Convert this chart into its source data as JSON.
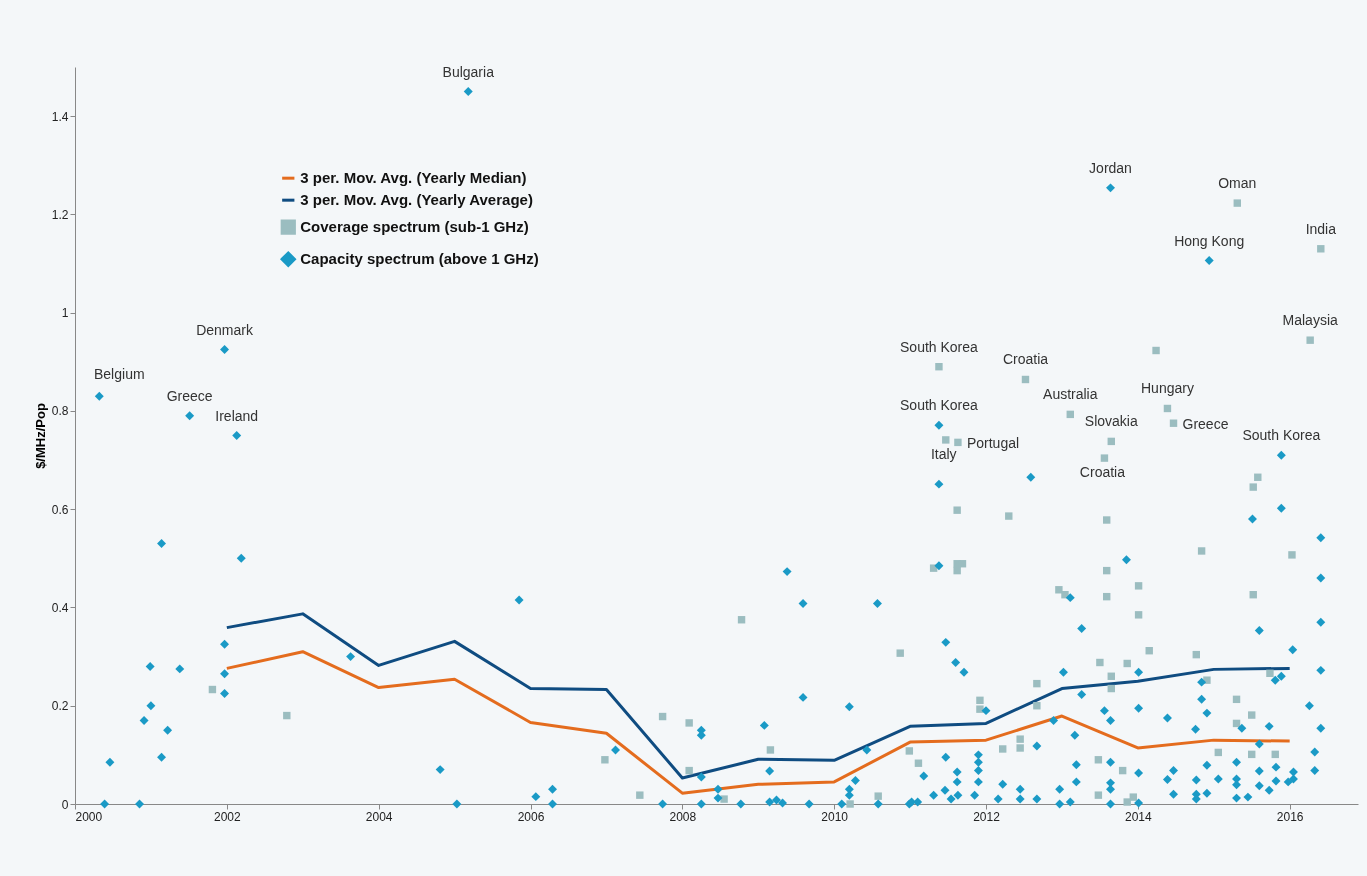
{
  "chart_data": {
    "type": "scatter",
    "ylabel": "$/MHz/Pop",
    "xlim": [
      2000,
      2016.9
    ],
    "xticks": [
      2000,
      2002,
      2004,
      2006,
      2008,
      2010,
      2012,
      2014,
      2016
    ],
    "ylim": [
      0,
      1.5
    ],
    "yticks": [
      0,
      0.2,
      0.4,
      0.6,
      0.8,
      1,
      1.2,
      1.4
    ],
    "grid": false,
    "legend": "top left",
    "series": [
      {
        "name": "3 per. Mov. Avg. (Yearly Median)",
        "type": "line",
        "color": "#e46c1e",
        "x": [
          2002,
          2003,
          2004,
          2005,
          2006,
          2007,
          2008,
          2009,
          2010,
          2011,
          2012,
          2013,
          2014,
          2015,
          2016
        ],
        "values": [
          0.276,
          0.31,
          0.237,
          0.254,
          0.166,
          0.144,
          0.022,
          0.04,
          0.045,
          0.126,
          0.13,
          0.179,
          0.114,
          0.13,
          0.128
        ]
      },
      {
        "name": "3 per. Mov. Avg. (Yearly Average)",
        "type": "line",
        "color": "#0f4c81",
        "x": [
          2002,
          2003,
          2004,
          2005,
          2006,
          2007,
          2008,
          2009,
          2010,
          2011,
          2012,
          2013,
          2014,
          2015,
          2016
        ],
        "values": [
          0.359,
          0.387,
          0.282,
          0.331,
          0.235,
          0.233,
          0.053,
          0.091,
          0.089,
          0.158,
          0.164,
          0.235,
          0.25,
          0.274,
          0.276
        ]
      },
      {
        "name": "Coverage spectrum (sub-1 GHz)",
        "marker": "square",
        "color": "#9bbdc0",
        "x": [
          2001.81,
          2002.79,
          2006.98,
          2007.44,
          2007.74,
          2008.09,
          2008.09,
          2008.55,
          2008.78,
          2009.16,
          2010.21,
          2010.58,
          2010.87,
          2010.99,
          2011.11,
          2011.31,
          2011.38,
          2011.47,
          2011.62,
          2011.62,
          2011.62,
          2011.63,
          2011.69,
          2011.92,
          2011.92,
          2012.22,
          2012.3,
          2012.45,
          2012.45,
          2012.52,
          2012.67,
          2012.67,
          2012.96,
          2013.04,
          2013.11,
          2013.48,
          2013.48,
          2013.5,
          2013.56,
          2013.59,
          2013.59,
          2013.59,
          2013.65,
          2013.65,
          2013.65,
          2013.8,
          2013.86,
          2013.86,
          2013.94,
          2014.01,
          2014.01,
          2014.15,
          2014.24,
          2014.39,
          2014.47,
          2014.77,
          2014.84,
          2014.91,
          2015.06,
          2015.3,
          2015.3,
          2015.31,
          2015.5,
          2015.5,
          2015.52,
          2015.52,
          2015.58,
          2015.74,
          2015.81,
          2016.03,
          2016.27,
          2016.41
        ],
        "values": [
          0.233,
          0.18,
          0.09,
          0.018,
          0.178,
          0.165,
          0.068,
          0.01,
          0.375,
          0.11,
          0,
          0.016,
          0.307,
          0.108,
          0.083,
          0.48,
          0.89,
          0.741,
          0.598,
          0.489,
          0.475,
          0.736,
          0.489,
          0.211,
          0.193,
          0.112,
          0.586,
          0.132,
          0.114,
          0.864,
          0.245,
          0.2,
          0.436,
          0.426,
          0.793,
          0.09,
          0.018,
          0.288,
          0.704,
          0.578,
          0.475,
          0.422,
          0.738,
          0.26,
          0.235,
          0.068,
          0.286,
          0.004,
          0.014,
          0.444,
          0.385,
          0.312,
          0.923,
          0.805,
          0.775,
          0.304,
          0.515,
          0.252,
          0.105,
          0.213,
          0.164,
          1.223,
          0.181,
          0.101,
          0.645,
          0.426,
          0.665,
          0.266,
          0.101,
          0.507,
          0.944,
          1.13
        ]
      },
      {
        "name": "Capacity spectrum (above 1 GHz)",
        "marker": "diamond",
        "color": "#1a9ac6",
        "x": [
          2000.32,
          2000.39,
          2000.46,
          2000.85,
          2000.91,
          2000.99,
          2001.0,
          2001.14,
          2001.14,
          2001.22,
          2001.38,
          2001.51,
          2001.97,
          2001.97,
          2001.97,
          2001.97,
          2002.13,
          2002.19,
          2003.63,
          2004.81,
          2005.03,
          2005.18,
          2005.85,
          2006.07,
          2006.29,
          2006.29,
          2007.12,
          2007.74,
          2008.25,
          2008.25,
          2008.25,
          2008.25,
          2008.47,
          2008.47,
          2008.77,
          2009.08,
          2009.15,
          2009.15,
          2009.24,
          2009.32,
          2009.38,
          2009.59,
          2009.59,
          2009.67,
          2010.1,
          2010.2,
          2010.2,
          2010.2,
          2010.28,
          2010.43,
          2010.57,
          2010.58,
          2010.99,
          2011.02,
          2011.1,
          2011.18,
          2011.31,
          2011.38,
          2011.38,
          2011.38,
          2011.46,
          2011.47,
          2011.47,
          2011.54,
          2011.6,
          2011.62,
          2011.62,
          2011.63,
          2011.71,
          2011.85,
          2011.9,
          2011.9,
          2011.9,
          2011.9,
          2012.0,
          2012.16,
          2012.22,
          2012.45,
          2012.45,
          2012.59,
          2012.67,
          2012.67,
          2012.89,
          2012.97,
          2012.97,
          2013.02,
          2013.11,
          2013.11,
          2013.17,
          2013.19,
          2013.19,
          2013.26,
          2013.26,
          2013.56,
          2013.64,
          2013.64,
          2013.64,
          2013.64,
          2013.64,
          2013.64,
          2013.85,
          2014.01,
          2014.01,
          2014.01,
          2014.01,
          2014.39,
          2014.39,
          2014.47,
          2014.47,
          2014.76,
          2014.77,
          2014.77,
          2014.77,
          2014.84,
          2014.84,
          2014.91,
          2014.91,
          2014.91,
          2014.94,
          2015.06,
          2015.3,
          2015.3,
          2015.3,
          2015.3,
          2015.37,
          2015.45,
          2015.51,
          2015.6,
          2015.6,
          2015.6,
          2015.6,
          2015.73,
          2015.73,
          2015.81,
          2015.82,
          2015.82,
          2015.89,
          2015.89,
          2015.89,
          2015.98,
          2016.04,
          2016.05,
          2016.05,
          2016.26,
          2016.33,
          2016.33,
          2016.41,
          2016.41,
          2016.41,
          2016.41,
          2016.41
        ],
        "values": [
          0.83,
          0,
          0.085,
          0,
          0.17,
          0.28,
          0.2,
          0.53,
          0.095,
          0.15,
          0.275,
          0.79,
          0.925,
          0.325,
          0.265,
          0.225,
          0.75,
          0.5,
          0.3,
          0.07,
          0,
          1.45,
          0.415,
          0.015,
          0.03,
          0,
          0.11,
          0,
          0.15,
          0.14,
          0.055,
          0,
          0.03,
          0.012,
          0,
          0.16,
          0.067,
          0.004,
          0.008,
          0.002,
          0.473,
          0.408,
          0.217,
          0,
          0,
          0.198,
          0.03,
          0.018,
          0.048,
          0.11,
          0.408,
          0,
          0,
          0.004,
          0.004,
          0.057,
          0.018,
          0.771,
          0.651,
          0.485,
          0.028,
          0.329,
          0.095,
          0.01,
          0.288,
          0.065,
          0.045,
          0.018,
          0.268,
          0.018,
          0.1,
          0.085,
          0.068,
          0.045,
          0.19,
          0.01,
          0.04,
          0.03,
          0.01,
          0.665,
          0.118,
          0.01,
          0.17,
          0.03,
          0,
          0.268,
          0.42,
          0.004,
          0.14,
          0.08,
          0.045,
          0.357,
          0.223,
          0.19,
          1.254,
          0.17,
          0.085,
          0.043,
          0.03,
          0,
          0.497,
          0.268,
          0.195,
          0.063,
          0.002,
          0.175,
          0.05,
          0.068,
          0.02,
          0.152,
          0.049,
          0.02,
          0.01,
          0.248,
          0.213,
          0.185,
          0.079,
          0.022,
          1.106,
          0.051,
          0.085,
          0.051,
          0.039,
          0.012,
          0.154,
          0.014,
          0.58,
          0.353,
          0.122,
          0.067,
          0.037,
          0.158,
          0.028,
          0.252,
          0.075,
          0.047,
          0.71,
          0.602,
          0.26,
          0.045,
          0.314,
          0.065,
          0.051,
          0.2,
          0.106,
          0.068,
          0.542,
          0.46,
          0.37,
          0.272,
          0.154
        ]
      }
    ],
    "annotations": [
      {
        "text": "Belgium",
        "x": 2000.32,
        "y": 0.83
      },
      {
        "text": "Greece",
        "x": 2001.51,
        "y": 0.79
      },
      {
        "text": "Denmark",
        "x": 2001.97,
        "y": 0.925
      },
      {
        "text": "Ireland",
        "x": 2002.13,
        "y": 0.75
      },
      {
        "text": "Bulgaria",
        "x": 2005.18,
        "y": 1.45
      },
      {
        "text": "South Korea",
        "x": 2011.38,
        "y": 0.89
      },
      {
        "text": "South Korea",
        "x": 2011.38,
        "y": 0.771
      },
      {
        "text": "Italy",
        "x": 2011.47,
        "y": 0.741
      },
      {
        "text": "Portugal",
        "x": 2011.63,
        "y": 0.736
      },
      {
        "text": "Croatia",
        "x": 2012.52,
        "y": 0.864
      },
      {
        "text": "Australia",
        "x": 2013.11,
        "y": 0.793
      },
      {
        "text": "Slovakia",
        "x": 2013.65,
        "y": 0.738
      },
      {
        "text": "Croatia",
        "x": 2013.56,
        "y": 0.704
      },
      {
        "text": "Jordan",
        "x": 2013.64,
        "y": 1.254
      },
      {
        "text": "Oman",
        "x": 2015.31,
        "y": 1.223
      },
      {
        "text": "Hong Kong",
        "x": 2014.94,
        "y": 1.106
      },
      {
        "text": "India",
        "x": 2016.41,
        "y": 1.13
      },
      {
        "text": "Malaysia",
        "x": 2016.27,
        "y": 0.944
      },
      {
        "text": "Hungary",
        "x": 2014.39,
        "y": 0.805
      },
      {
        "text": "Greece",
        "x": 2014.47,
        "y": 0.775
      },
      {
        "text": "South Korea",
        "x": 2015.89,
        "y": 0.71
      }
    ]
  }
}
